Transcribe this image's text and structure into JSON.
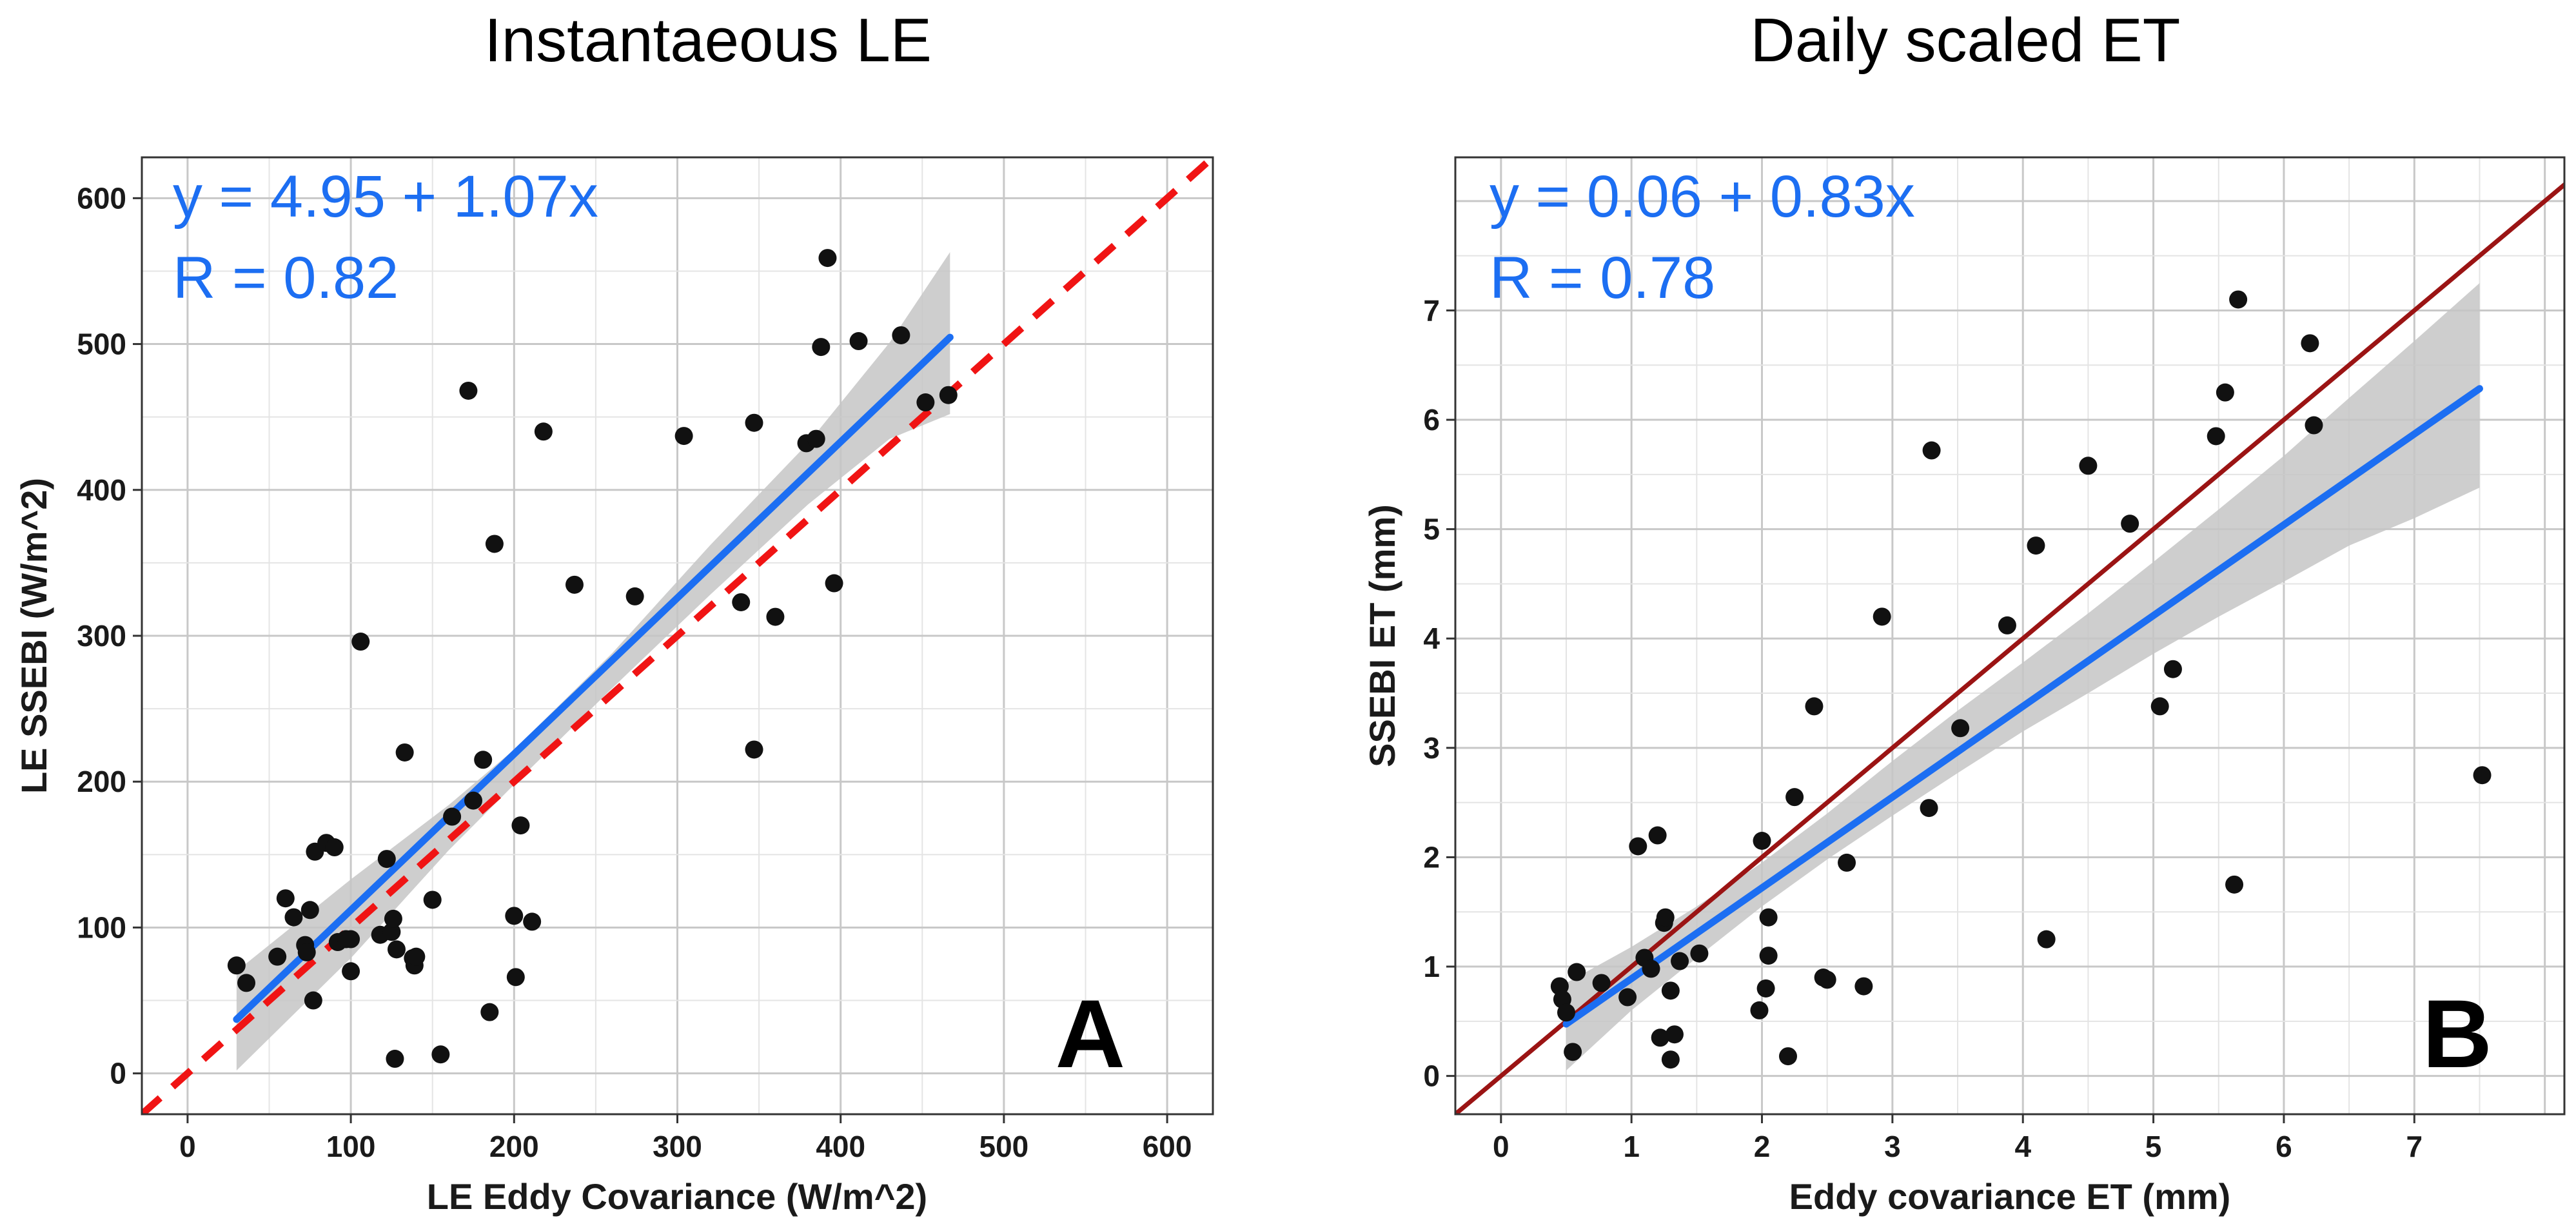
{
  "chart_data": [
    {
      "type": "scatter",
      "title": "Instantaeous LE",
      "xlabel": "LE Eddy Covariance (W/m^2)",
      "ylabel": "LE SSEBI (W/m^2)",
      "xlim": [
        -28,
        628
      ],
      "ylim": [
        -28,
        628
      ],
      "xticks": [
        0,
        100,
        200,
        300,
        400,
        500,
        600
      ],
      "yticks": [
        0,
        100,
        200,
        300,
        400,
        500,
        600
      ],
      "xtick_labels": [
        "0",
        "100",
        "200",
        "300",
        "400",
        "500",
        "600"
      ],
      "ytick_labels": [
        "0",
        "100",
        "200",
        "300",
        "400",
        "500",
        "600"
      ],
      "grid": true,
      "equation": "y = 4.95 + 1.07x",
      "r_text": "R = 0.82",
      "panel_label": "A",
      "fit": {
        "intercept": 4.95,
        "slope": 1.07,
        "x_range": [
          30,
          467
        ]
      },
      "confidence_band": {
        "x": [
          30,
          100,
          160,
          200,
          260,
          320,
          380,
          430,
          467
        ],
        "lower": [
          2,
          79,
          153,
          198,
          264,
          328,
          390,
          435,
          452
        ],
        "upper": [
          70,
          133,
          184,
          222,
          288,
          362,
          432,
          501,
          563
        ]
      },
      "reference_line": {
        "type": "identity",
        "style": "dashed",
        "color": "#f01414"
      },
      "points_x": [
        30,
        36,
        55,
        60,
        65,
        72,
        73,
        75,
        77,
        78,
        85,
        90,
        92,
        97,
        100,
        100,
        106,
        118,
        122,
        125,
        126,
        127,
        128,
        133,
        138,
        139,
        140,
        150,
        155,
        162,
        172,
        175,
        181,
        185,
        188,
        200,
        201,
        204,
        211,
        218,
        237,
        274,
        304,
        339,
        347,
        347,
        360,
        379,
        385,
        388,
        392,
        396,
        411,
        437,
        452,
        466
      ],
      "points_y": [
        74,
        62,
        80,
        120,
        107,
        88,
        83,
        112,
        50,
        152,
        158,
        155,
        90,
        92,
        70,
        92,
        296,
        95,
        147,
        97,
        106,
        10,
        85,
        220,
        79,
        74,
        80,
        119,
        13,
        176,
        468,
        187,
        215,
        42,
        363,
        108,
        66,
        170,
        104,
        440,
        335,
        327,
        437,
        323,
        222,
        446,
        313,
        432,
        435,
        498,
        559,
        336,
        502,
        506,
        460,
        465
      ],
      "colors": {
        "points": "#111111",
        "fit": "#1c6ef2",
        "band": "#c6c6c6",
        "reference": "#f01414",
        "annotation": "#1c6ef2"
      }
    },
    {
      "type": "scatter",
      "title": "Daily scaled ET",
      "xlabel": "Eddy covariance ET (mm)",
      "ylabel": "SSEBI ET (mm)",
      "xlim": [
        -0.35,
        8.15
      ],
      "ylim": [
        -0.35,
        8.4
      ],
      "xticks": [
        0,
        1,
        2,
        3,
        4,
        5,
        6,
        7
      ],
      "yticks": [
        0,
        1,
        2,
        3,
        4,
        5,
        6,
        7
      ],
      "xtick_labels": [
        "0",
        "1",
        "2",
        "3",
        "4",
        "5",
        "6",
        "7"
      ],
      "ytick_labels": [
        "0",
        "1",
        "2",
        "3",
        "4",
        "5",
        "6",
        "7"
      ],
      "grid": true,
      "equation": "y = 0.06 + 0.83x",
      "r_text": "R = 0.78",
      "panel_label": "B",
      "fit": {
        "intercept": 0.06,
        "slope": 0.83,
        "x_range": [
          0.5,
          7.5
        ]
      },
      "confidence_band": {
        "x": [
          0.5,
          1.0,
          1.5,
          2.0,
          2.5,
          3.0,
          3.5,
          4.0,
          4.5,
          5.0,
          5.5,
          6.0,
          6.5,
          7.0,
          7.5
        ],
        "lower": [
          0.05,
          0.6,
          1.08,
          1.55,
          1.98,
          2.38,
          2.77,
          3.15,
          3.5,
          3.86,
          4.2,
          4.52,
          4.85,
          5.1,
          5.38
        ],
        "upper": [
          0.85,
          1.18,
          1.55,
          1.95,
          2.4,
          2.88,
          3.34,
          3.78,
          4.23,
          4.7,
          5.18,
          5.67,
          6.2,
          6.72,
          7.25
        ]
      },
      "reference_line": {
        "type": "identity",
        "style": "solid",
        "color": "#9b1414"
      },
      "points_x": [
        0.45,
        0.47,
        0.5,
        0.55,
        0.58,
        0.77,
        0.97,
        1.05,
        1.1,
        1.15,
        1.2,
        1.22,
        1.25,
        1.26,
        1.3,
        1.3,
        1.33,
        1.37,
        1.52,
        1.98,
        2.0,
        2.03,
        2.05,
        2.05,
        2.2,
        2.25,
        2.4,
        2.47,
        2.5,
        2.65,
        2.78,
        2.92,
        3.28,
        3.3,
        3.52,
        3.88,
        4.1,
        4.18,
        4.5,
        4.82,
        5.05,
        5.15,
        5.48,
        5.55,
        5.62,
        5.65,
        6.2,
        6.23,
        7.52
      ],
      "points_y": [
        0.82,
        0.7,
        0.58,
        0.22,
        0.95,
        0.85,
        0.72,
        2.1,
        1.08,
        0.98,
        2.2,
        0.35,
        1.4,
        1.45,
        0.15,
        0.78,
        0.38,
        1.05,
        1.12,
        0.6,
        2.15,
        0.8,
        1.45,
        1.1,
        0.18,
        2.55,
        3.38,
        0.9,
        0.88,
        1.95,
        0.82,
        4.2,
        2.45,
        5.72,
        3.18,
        4.12,
        4.85,
        1.25,
        5.58,
        5.05,
        3.38,
        3.72,
        5.85,
        6.25,
        1.75,
        7.1,
        6.7,
        5.95,
        2.75
      ],
      "colors": {
        "points": "#111111",
        "fit": "#1c6ef2",
        "band": "#c6c6c6",
        "reference": "#9b1414",
        "annotation": "#1c6ef2"
      }
    }
  ]
}
